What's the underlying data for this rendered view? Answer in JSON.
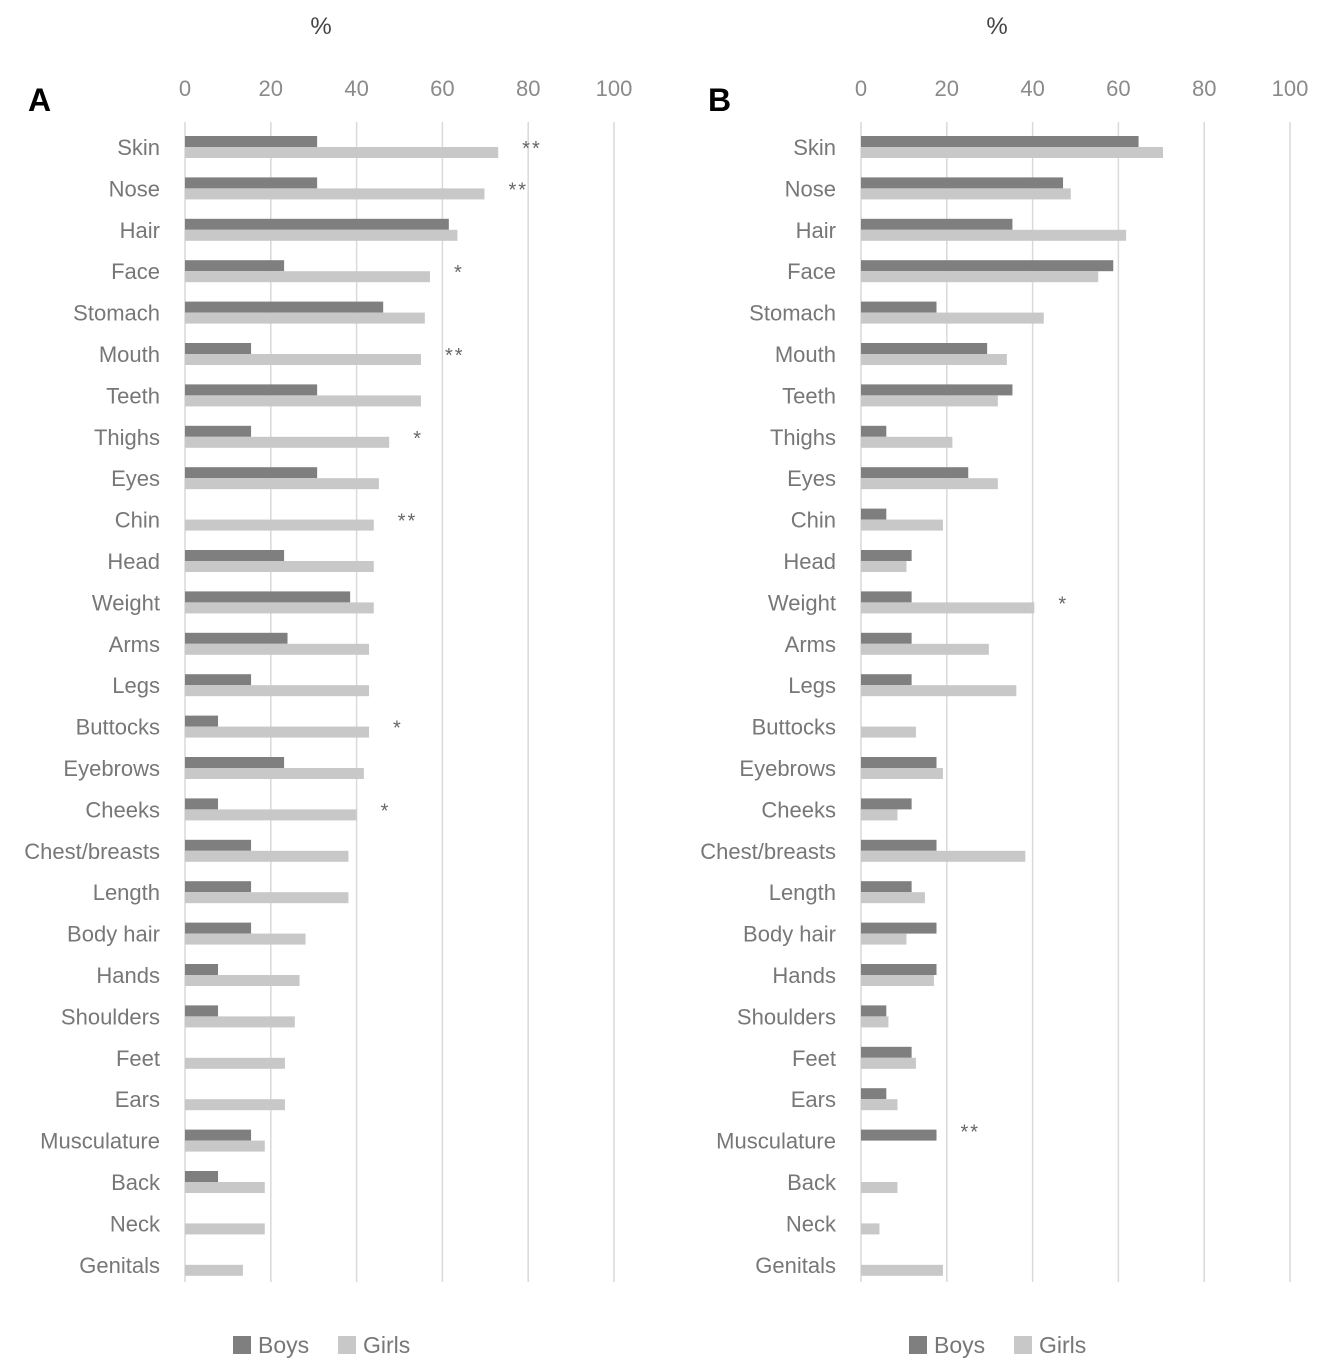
{
  "chart_data": [
    {
      "type": "bar",
      "orientation": "horizontal",
      "panel": "A",
      "axis_unit": "%",
      "xlim": [
        0,
        100
      ],
      "ticks": [
        "0",
        "20",
        "40",
        "60",
        "80",
        "100"
      ],
      "grid": true,
      "legend_position": "bottom",
      "categories": [
        "Skin",
        "Nose",
        "Hair",
        "Face",
        "Stomach",
        "Mouth",
        "Teeth",
        "Thighs",
        "Eyes",
        "Chin",
        "Head",
        "Weight",
        "Arms",
        "Legs",
        "Buttocks",
        "Eyebrows",
        "Cheeks",
        "Chest/breasts",
        "Length",
        "Body hair",
        "Hands",
        "Shoulders",
        "Feet",
        "Ears",
        "Musculature",
        "Back",
        "Neck",
        "Genitals"
      ],
      "series": [
        {
          "name": "Boys",
          "color": "#7f7f7f",
          "values": [
            30.8,
            30.8,
            61.5,
            23.1,
            46.2,
            15.4,
            30.8,
            15.4,
            30.8,
            0,
            23.1,
            38.5,
            23.9,
            15.4,
            7.7,
            23.1,
            7.7,
            15.4,
            15.4,
            15.4,
            7.7,
            7.7,
            0,
            0,
            15.4,
            7.7,
            0,
            0
          ]
        },
        {
          "name": "Girls",
          "color": "#c8c8c8",
          "values": [
            73.0,
            69.8,
            63.5,
            57.1,
            55.9,
            55.0,
            55.0,
            47.6,
            45.2,
            44.0,
            44.0,
            44.0,
            42.9,
            42.9,
            42.9,
            41.7,
            40.0,
            38.1,
            38.1,
            28.1,
            26.7,
            25.6,
            23.3,
            23.3,
            18.6,
            18.6,
            18.6,
            13.5
          ]
        }
      ],
      "significance": [
        "**",
        "**",
        "",
        "*",
        "",
        "**",
        "",
        "*",
        "",
        "**",
        "",
        "",
        "",
        "",
        "*",
        "",
        "*",
        "",
        "",
        "",
        "",
        "",
        "",
        "",
        "",
        "",
        "",
        ""
      ]
    },
    {
      "type": "bar",
      "orientation": "horizontal",
      "panel": "B",
      "axis_unit": "%",
      "xlim": [
        0,
        100
      ],
      "ticks": [
        "0",
        "20",
        "40",
        "60",
        "80",
        "100"
      ],
      "grid": true,
      "legend_position": "bottom",
      "categories": [
        "Skin",
        "Nose",
        "Hair",
        "Face",
        "Stomach",
        "Mouth",
        "Teeth",
        "Thighs",
        "Eyes",
        "Chin",
        "Head",
        "Weight",
        "Arms",
        "Legs",
        "Buttocks",
        "Eyebrows",
        "Cheeks",
        "Chest/breasts",
        "Length",
        "Body hair",
        "Hands",
        "Shoulders",
        "Feet",
        "Ears",
        "Musculature",
        "Back",
        "Neck",
        "Genitals"
      ],
      "series": [
        {
          "name": "Boys",
          "color": "#7f7f7f",
          "values": [
            64.7,
            47.1,
            35.3,
            58.8,
            17.6,
            29.4,
            35.3,
            5.9,
            25.0,
            5.9,
            11.8,
            11.8,
            11.8,
            11.8,
            0,
            17.6,
            11.8,
            17.6,
            11.8,
            17.6,
            17.6,
            5.9,
            11.8,
            5.9,
            17.6,
            0,
            0,
            0
          ]
        },
        {
          "name": "Girls",
          "color": "#c8c8c8",
          "values": [
            70.4,
            48.9,
            61.8,
            55.3,
            42.6,
            34.0,
            31.9,
            21.3,
            31.9,
            19.1,
            10.6,
            40.4,
            29.8,
            36.2,
            12.8,
            19.1,
            8.5,
            38.3,
            14.9,
            10.6,
            17.0,
            6.4,
            12.8,
            8.5,
            0,
            8.5,
            4.3,
            19.1
          ]
        }
      ],
      "significance": [
        "",
        "",
        "",
        "",
        "",
        "",
        "",
        "",
        "",
        "",
        "",
        "*",
        "",
        "",
        "",
        "",
        "",
        "",
        "",
        "",
        "",
        "",
        "",
        "",
        "**",
        "",
        "",
        ""
      ]
    }
  ]
}
